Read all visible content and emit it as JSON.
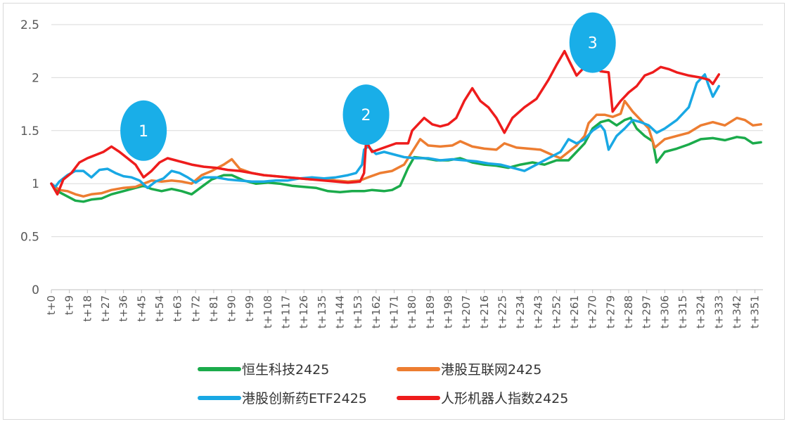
{
  "chart_data": {
    "type": "line",
    "title": "",
    "xlabel": "",
    "ylabel": "",
    "ylim": [
      0,
      2.5
    ],
    "yticks": [
      "0",
      "0.5",
      "1",
      "1.5",
      "2",
      "2.5"
    ],
    "grid": true,
    "legend_position": "bottom",
    "x_tick_labels": [
      "t+0",
      "t+9",
      "t+18",
      "t+27",
      "t+36",
      "t+45",
      "t+54",
      "t+63",
      "t+72",
      "t+81",
      "t+90",
      "t+99",
      "t+108",
      "t+117",
      "t+126",
      "t+135",
      "t+144",
      "t+153",
      "t+162",
      "t+171",
      "t+180",
      "t+189",
      "t+198",
      "t+207",
      "t+216",
      "t+225",
      "t+234",
      "t+243",
      "t+252",
      "t+261",
      "t+270",
      "t+279",
      "t+288",
      "t+297",
      "t+306",
      "t+315",
      "t+324",
      "t+333",
      "t+342",
      "t+351"
    ],
    "x_range": [
      0,
      355
    ],
    "series": [
      {
        "name": "恒生科技2425",
        "color": "#1bab4b",
        "points": [
          [
            0,
            1.0
          ],
          [
            4,
            0.92
          ],
          [
            8,
            0.88
          ],
          [
            12,
            0.84
          ],
          [
            16,
            0.83
          ],
          [
            20,
            0.85
          ],
          [
            25,
            0.86
          ],
          [
            30,
            0.9
          ],
          [
            36,
            0.93
          ],
          [
            42,
            0.96
          ],
          [
            46,
            0.98
          ],
          [
            50,
            0.95
          ],
          [
            55,
            0.93
          ],
          [
            60,
            0.95
          ],
          [
            65,
            0.93
          ],
          [
            70,
            0.9
          ],
          [
            75,
            0.97
          ],
          [
            80,
            1.04
          ],
          [
            86,
            1.08
          ],
          [
            90,
            1.08
          ],
          [
            96,
            1.03
          ],
          [
            102,
            1.0
          ],
          [
            108,
            1.01
          ],
          [
            114,
            1.0
          ],
          [
            120,
            0.98
          ],
          [
            126,
            0.97
          ],
          [
            132,
            0.96
          ],
          [
            138,
            0.93
          ],
          [
            144,
            0.92
          ],
          [
            150,
            0.93
          ],
          [
            156,
            0.93
          ],
          [
            160,
            0.94
          ],
          [
            166,
            0.93
          ],
          [
            170,
            0.94
          ],
          [
            174,
            0.98
          ],
          [
            178,
            1.15
          ],
          [
            181,
            1.25
          ],
          [
            186,
            1.24
          ],
          [
            192,
            1.22
          ],
          [
            198,
            1.22
          ],
          [
            204,
            1.24
          ],
          [
            210,
            1.2
          ],
          [
            216,
            1.18
          ],
          [
            222,
            1.17
          ],
          [
            228,
            1.15
          ],
          [
            234,
            1.18
          ],
          [
            240,
            1.2
          ],
          [
            246,
            1.18
          ],
          [
            252,
            1.22
          ],
          [
            258,
            1.22
          ],
          [
            262,
            1.3
          ],
          [
            266,
            1.38
          ],
          [
            270,
            1.52
          ],
          [
            274,
            1.58
          ],
          [
            278,
            1.6
          ],
          [
            282,
            1.55
          ],
          [
            286,
            1.6
          ],
          [
            289,
            1.62
          ],
          [
            292,
            1.52
          ],
          [
            296,
            1.45
          ],
          [
            300,
            1.4
          ],
          [
            302,
            1.2
          ],
          [
            306,
            1.3
          ],
          [
            312,
            1.33
          ],
          [
            318,
            1.37
          ],
          [
            324,
            1.42
          ],
          [
            330,
            1.43
          ],
          [
            336,
            1.41
          ],
          [
            342,
            1.44
          ],
          [
            346,
            1.43
          ],
          [
            350,
            1.38
          ],
          [
            354,
            1.39
          ]
        ]
      },
      {
        "name": "港股互联网2425",
        "color": "#ed7d31",
        "points": [
          [
            0,
            1.0
          ],
          [
            4,
            0.94
          ],
          [
            8,
            0.93
          ],
          [
            12,
            0.9
          ],
          [
            16,
            0.88
          ],
          [
            20,
            0.9
          ],
          [
            25,
            0.91
          ],
          [
            30,
            0.94
          ],
          [
            36,
            0.96
          ],
          [
            42,
            0.97
          ],
          [
            46,
            1.0
          ],
          [
            50,
            1.03
          ],
          [
            55,
            1.02
          ],
          [
            60,
            1.03
          ],
          [
            65,
            1.02
          ],
          [
            70,
            1.0
          ],
          [
            75,
            1.08
          ],
          [
            80,
            1.12
          ],
          [
            86,
            1.18
          ],
          [
            90,
            1.23
          ],
          [
            94,
            1.14
          ],
          [
            100,
            1.1
          ],
          [
            106,
            1.08
          ],
          [
            112,
            1.07
          ],
          [
            118,
            1.06
          ],
          [
            124,
            1.05
          ],
          [
            130,
            1.04
          ],
          [
            136,
            1.05
          ],
          [
            142,
            1.03
          ],
          [
            148,
            1.02
          ],
          [
            154,
            1.03
          ],
          [
            158,
            1.06
          ],
          [
            164,
            1.1
          ],
          [
            170,
            1.12
          ],
          [
            176,
            1.18
          ],
          [
            180,
            1.3
          ],
          [
            184,
            1.42
          ],
          [
            188,
            1.36
          ],
          [
            194,
            1.35
          ],
          [
            200,
            1.36
          ],
          [
            204,
            1.4
          ],
          [
            210,
            1.35
          ],
          [
            216,
            1.33
          ],
          [
            222,
            1.32
          ],
          [
            226,
            1.38
          ],
          [
            232,
            1.34
          ],
          [
            238,
            1.33
          ],
          [
            244,
            1.32
          ],
          [
            250,
            1.27
          ],
          [
            254,
            1.24
          ],
          [
            258,
            1.3
          ],
          [
            262,
            1.36
          ],
          [
            266,
            1.45
          ],
          [
            268,
            1.57
          ],
          [
            272,
            1.65
          ],
          [
            276,
            1.65
          ],
          [
            280,
            1.63
          ],
          [
            284,
            1.66
          ],
          [
            286,
            1.78
          ],
          [
            290,
            1.68
          ],
          [
            294,
            1.6
          ],
          [
            298,
            1.52
          ],
          [
            301,
            1.34
          ],
          [
            306,
            1.42
          ],
          [
            312,
            1.45
          ],
          [
            318,
            1.48
          ],
          [
            324,
            1.55
          ],
          [
            330,
            1.58
          ],
          [
            336,
            1.55
          ],
          [
            342,
            1.62
          ],
          [
            346,
            1.6
          ],
          [
            350,
            1.55
          ],
          [
            354,
            1.56
          ]
        ]
      },
      {
        "name": "港股创新药ETF2425",
        "color": "#19a8e4",
        "points": [
          [
            0,
            1.0
          ],
          [
            2,
            0.97
          ],
          [
            4,
            1.02
          ],
          [
            8,
            1.08
          ],
          [
            12,
            1.12
          ],
          [
            16,
            1.12
          ],
          [
            20,
            1.06
          ],
          [
            24,
            1.13
          ],
          [
            28,
            1.14
          ],
          [
            32,
            1.1
          ],
          [
            36,
            1.07
          ],
          [
            40,
            1.06
          ],
          [
            44,
            1.03
          ],
          [
            48,
            0.96
          ],
          [
            52,
            1.02
          ],
          [
            56,
            1.05
          ],
          [
            60,
            1.12
          ],
          [
            64,
            1.1
          ],
          [
            68,
            1.06
          ],
          [
            72,
            1.01
          ],
          [
            76,
            1.06
          ],
          [
            82,
            1.06
          ],
          [
            88,
            1.04
          ],
          [
            94,
            1.03
          ],
          [
            100,
            1.02
          ],
          [
            106,
            1.02
          ],
          [
            112,
            1.03
          ],
          [
            118,
            1.03
          ],
          [
            124,
            1.05
          ],
          [
            130,
            1.06
          ],
          [
            136,
            1.05
          ],
          [
            142,
            1.06
          ],
          [
            148,
            1.08
          ],
          [
            152,
            1.1
          ],
          [
            155,
            1.18
          ],
          [
            156,
            1.32
          ],
          [
            158,
            1.35
          ],
          [
            162,
            1.28
          ],
          [
            166,
            1.3
          ],
          [
            170,
            1.28
          ],
          [
            176,
            1.25
          ],
          [
            182,
            1.24
          ],
          [
            188,
            1.24
          ],
          [
            194,
            1.22
          ],
          [
            200,
            1.23
          ],
          [
            206,
            1.22
          ],
          [
            212,
            1.21
          ],
          [
            218,
            1.19
          ],
          [
            224,
            1.18
          ],
          [
            230,
            1.15
          ],
          [
            236,
            1.12
          ],
          [
            242,
            1.18
          ],
          [
            248,
            1.24
          ],
          [
            254,
            1.3
          ],
          [
            258,
            1.42
          ],
          [
            262,
            1.38
          ],
          [
            266,
            1.42
          ],
          [
            270,
            1.5
          ],
          [
            274,
            1.55
          ],
          [
            276,
            1.5
          ],
          [
            278,
            1.32
          ],
          [
            282,
            1.45
          ],
          [
            286,
            1.52
          ],
          [
            290,
            1.6
          ],
          [
            294,
            1.58
          ],
          [
            298,
            1.55
          ],
          [
            302,
            1.48
          ],
          [
            306,
            1.52
          ],
          [
            312,
            1.6
          ],
          [
            318,
            1.72
          ],
          [
            322,
            1.95
          ],
          [
            326,
            2.03
          ],
          [
            328,
            1.92
          ],
          [
            330,
            1.82
          ],
          [
            333,
            1.92
          ]
        ]
      },
      {
        "name": "人形机器人指数2425",
        "color": "#ee1c1c",
        "points": [
          [
            0,
            1.0
          ],
          [
            3,
            0.9
          ],
          [
            6,
            1.04
          ],
          [
            10,
            1.1
          ],
          [
            14,
            1.2
          ],
          [
            18,
            1.24
          ],
          [
            22,
            1.27
          ],
          [
            26,
            1.3
          ],
          [
            30,
            1.35
          ],
          [
            34,
            1.3
          ],
          [
            38,
            1.24
          ],
          [
            42,
            1.18
          ],
          [
            44,
            1.12
          ],
          [
            46,
            1.06
          ],
          [
            50,
            1.12
          ],
          [
            54,
            1.2
          ],
          [
            58,
            1.24
          ],
          [
            62,
            1.22
          ],
          [
            66,
            1.2
          ],
          [
            70,
            1.18
          ],
          [
            76,
            1.16
          ],
          [
            82,
            1.15
          ],
          [
            88,
            1.13
          ],
          [
            94,
            1.12
          ],
          [
            100,
            1.1
          ],
          [
            106,
            1.08
          ],
          [
            112,
            1.07
          ],
          [
            118,
            1.06
          ],
          [
            124,
            1.05
          ],
          [
            130,
            1.04
          ],
          [
            136,
            1.03
          ],
          [
            142,
            1.02
          ],
          [
            148,
            1.01
          ],
          [
            154,
            1.02
          ],
          [
            156,
            1.1
          ],
          [
            157,
            1.4
          ],
          [
            160,
            1.3
          ],
          [
            166,
            1.34
          ],
          [
            172,
            1.38
          ],
          [
            178,
            1.38
          ],
          [
            180,
            1.5
          ],
          [
            186,
            1.62
          ],
          [
            190,
            1.56
          ],
          [
            194,
            1.54
          ],
          [
            198,
            1.56
          ],
          [
            202,
            1.62
          ],
          [
            206,
            1.78
          ],
          [
            210,
            1.9
          ],
          [
            214,
            1.78
          ],
          [
            218,
            1.72
          ],
          [
            222,
            1.62
          ],
          [
            226,
            1.48
          ],
          [
            230,
            1.62
          ],
          [
            236,
            1.72
          ],
          [
            242,
            1.8
          ],
          [
            248,
            1.98
          ],
          [
            252,
            2.12
          ],
          [
            256,
            2.25
          ],
          [
            258,
            2.17
          ],
          [
            262,
            2.02
          ],
          [
            266,
            2.1
          ],
          [
            270,
            2.12
          ],
          [
            274,
            2.06
          ],
          [
            278,
            2.05
          ],
          [
            280,
            1.68
          ],
          [
            284,
            1.78
          ],
          [
            288,
            1.86
          ],
          [
            292,
            1.92
          ],
          [
            296,
            2.02
          ],
          [
            300,
            2.05
          ],
          [
            304,
            2.1
          ],
          [
            308,
            2.08
          ],
          [
            312,
            2.05
          ],
          [
            318,
            2.02
          ],
          [
            324,
            2.0
          ],
          [
            328,
            1.98
          ],
          [
            330,
            1.94
          ],
          [
            333,
            2.03
          ]
        ]
      }
    ],
    "annotations": [
      {
        "label": "1",
        "x": 46,
        "y": 1.5
      },
      {
        "label": "2",
        "x": 157,
        "y": 1.65
      },
      {
        "label": "3",
        "x": 270,
        "y": 2.33
      }
    ],
    "annotation_color": "#19aee8"
  }
}
